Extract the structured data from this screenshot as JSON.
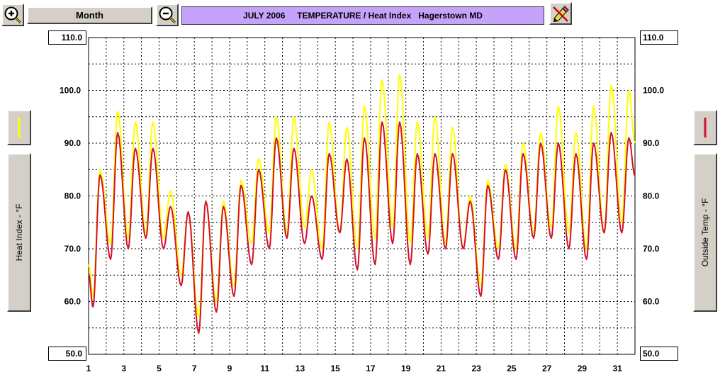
{
  "toolbar": {
    "zoom_in_icon": "magnifier-plus-icon",
    "zoom_out_icon": "magnifier-minus-icon",
    "period_label": "Month",
    "title": "JULY 2006     TEMPERATURE / Heat Index   Hagerstown MD",
    "title_bg": "#c5a3fa",
    "tool_icon": "pencil-eraser-icon"
  },
  "left_panel": {
    "series_label": "Heat Index - °F",
    "swatch_color": "#ffff00"
  },
  "right_panel": {
    "series_label": "Outside Temp - °F",
    "swatch_color": "#d4102a"
  },
  "chart_data": {
    "type": "line",
    "title": "JULY 2006     TEMPERATURE / Heat Index   Hagerstown MD",
    "xlabel": "",
    "ylabel": "Heat Index - °F",
    "ylabel_right": "Outside Temp - °F",
    "xlim": [
      1,
      32
    ],
    "ylim": [
      50,
      110
    ],
    "y_scale_labels": {
      "top": "110.0",
      "bottom": "50.0",
      "ticks": [
        "100.0",
        "90.0",
        "80.0",
        "70.0",
        "60.0"
      ],
      "tick_values": [
        100,
        90,
        80,
        70,
        60
      ]
    },
    "x_tick_labels": [
      "1",
      "3",
      "5",
      "7",
      "9",
      "11",
      "13",
      "15",
      "17",
      "19",
      "21",
      "23",
      "25",
      "27",
      "29",
      "31"
    ],
    "x_tick_values": [
      1,
      3,
      5,
      7,
      9,
      11,
      13,
      15,
      17,
      19,
      21,
      23,
      25,
      27,
      29,
      31
    ],
    "grid": true,
    "series": [
      {
        "name": "Heat Index - °F",
        "color": "#ffff00",
        "daily_max": [
          85,
          96,
          94,
          94,
          81,
          77,
          79,
          79,
          83,
          87,
          95,
          95,
          85,
          94,
          93,
          97,
          102,
          103,
          94,
          95,
          93,
          80,
          83,
          86,
          90,
          92,
          97,
          92,
          97,
          101,
          100
        ],
        "daily_min": [
          61,
          71,
          72,
          73,
          72,
          65,
          57,
          60,
          63,
          71,
          73,
          73,
          74,
          70,
          73,
          70,
          72,
          74,
          71,
          72,
          71,
          70,
          63,
          70,
          70,
          73,
          74,
          73,
          70,
          73,
          75
        ]
      },
      {
        "name": "Outside Temp - °F",
        "color": "#d4102a",
        "daily_max": [
          84,
          92,
          89,
          89,
          78,
          77,
          79,
          78,
          82,
          85,
          91,
          89,
          80,
          88,
          87,
          91,
          94,
          94,
          88,
          88,
          88,
          79,
          82,
          85,
          88,
          90,
          90,
          88,
          90,
          92,
          91
        ],
        "daily_min": [
          59,
          68,
          70,
          72,
          70,
          63,
          54,
          58,
          61,
          67,
          70,
          72,
          71,
          68,
          73,
          66,
          67,
          71,
          67,
          69,
          70,
          70,
          61,
          68,
          68,
          72,
          72,
          70,
          68,
          73,
          73
        ]
      }
    ]
  }
}
